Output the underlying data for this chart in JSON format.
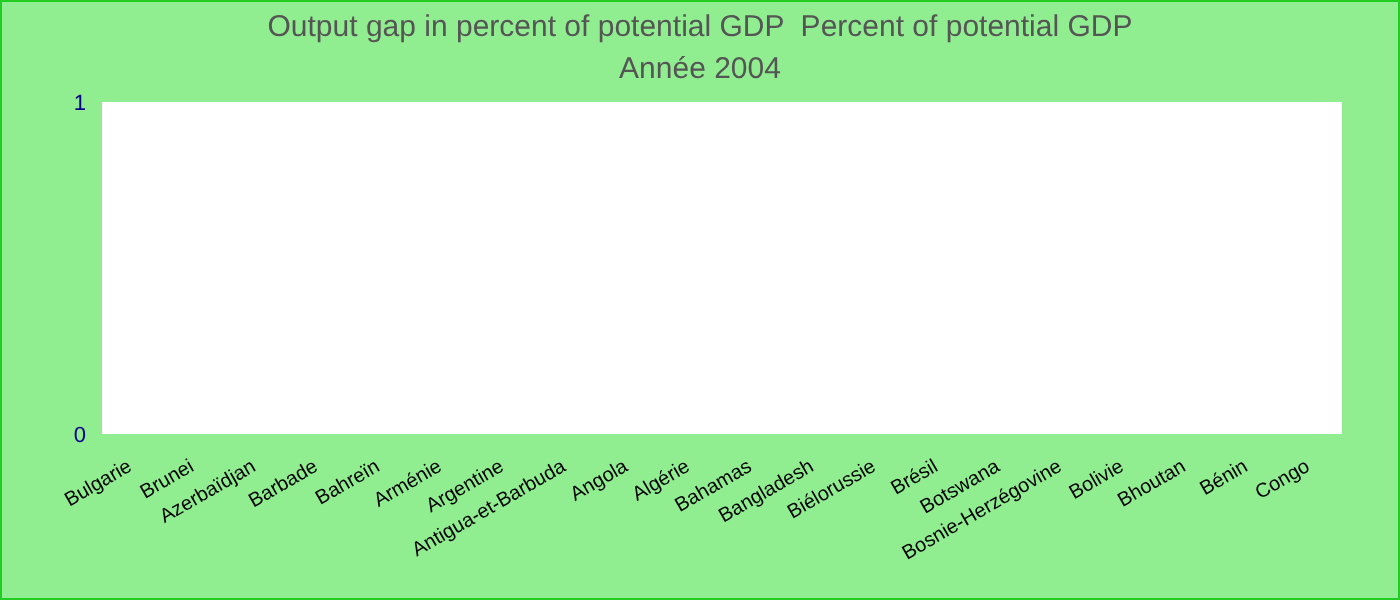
{
  "chart_data": {
    "type": "bar",
    "title": "Output gap in percent of potential GDP  Percent of potential GDP",
    "subtitle": "Année 2004",
    "categories": [
      "Bulgarie",
      "Brunei",
      "Azerbaïdjan",
      "Barbade",
      "Bahreïn",
      "Arménie",
      "Argentine",
      "Antigua-et-Barbuda",
      "Angola",
      "Algérie",
      "Bahamas",
      "Bangladesh",
      "Biélorussie",
      "Brésil",
      "Botswana",
      "Bosnie-Herzégovine",
      "Bolivie",
      "Bhoutan",
      "Bénin",
      "Congo"
    ],
    "values": [
      0,
      0,
      0,
      0,
      0,
      0,
      0,
      0,
      0,
      0,
      0,
      0,
      0,
      0,
      0,
      0,
      0,
      0,
      0,
      0
    ],
    "ylim": [
      0,
      1
    ],
    "yticks": [
      0,
      1
    ],
    "grid": false,
    "legend": false
  }
}
